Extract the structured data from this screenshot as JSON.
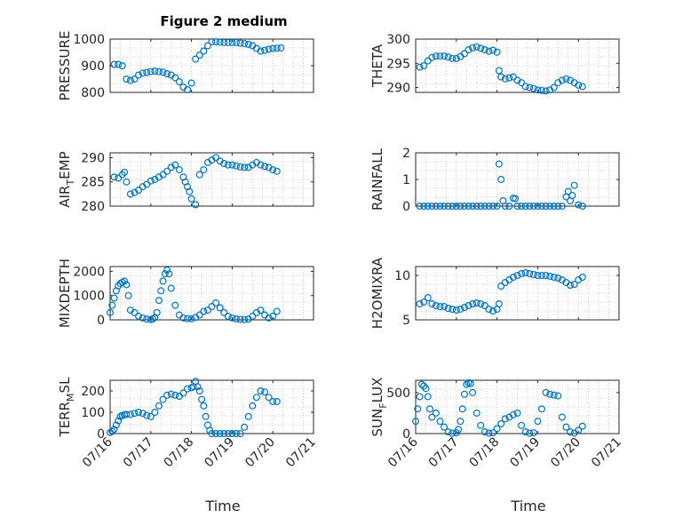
{
  "figure": {
    "title": "Figure 2 medium",
    "xlabel": "Time"
  },
  "x_ticks": [
    "07/16",
    "07/17",
    "07/18",
    "07/19",
    "07/20",
    "07/21"
  ],
  "colors": {
    "marker": "#0072BD",
    "axis": "#262626",
    "grid": "#c8c8c8"
  },
  "chart_data": [
    {
      "type": "scatter",
      "ylabel": "PRESSURE",
      "ylim": [
        800,
        1000
      ],
      "yticks": [
        800,
        900,
        1000
      ],
      "grid": true,
      "xlim": [
        "07/16",
        "07/21"
      ],
      "x": [
        16.1,
        16.2,
        16.3,
        16.4,
        16.5,
        16.6,
        16.7,
        16.8,
        16.9,
        17.0,
        17.1,
        17.2,
        17.3,
        17.4,
        17.5,
        17.6,
        17.7,
        17.8,
        17.9,
        18.0,
        18.1,
        18.2,
        18.3,
        18.4,
        18.5,
        18.6,
        18.7,
        18.8,
        18.9,
        19.0,
        19.1,
        19.2,
        19.3,
        19.4,
        19.5,
        19.6,
        19.7,
        19.8,
        19.9,
        20.0,
        20.1,
        20.2
      ],
      "y": [
        905,
        905,
        900,
        850,
        845,
        850,
        865,
        872,
        875,
        878,
        880,
        878,
        876,
        870,
        865,
        855,
        840,
        820,
        810,
        835,
        925,
        940,
        955,
        975,
        990,
        990,
        988,
        987,
        987,
        987,
        987,
        985,
        983,
        980,
        975,
        965,
        955,
        958,
        962,
        965,
        966,
        967
      ]
    },
    {
      "type": "scatter",
      "ylabel": "THETA",
      "ylim": [
        289,
        300
      ],
      "yticks": [
        290,
        295,
        300
      ],
      "grid": true,
      "xlim": [
        "07/16",
        "07/21"
      ],
      "x": [
        16.1,
        16.2,
        16.3,
        16.4,
        16.5,
        16.6,
        16.7,
        16.8,
        16.9,
        17.0,
        17.1,
        17.2,
        17.3,
        17.4,
        17.5,
        17.6,
        17.7,
        17.8,
        17.9,
        18.0,
        18.05,
        18.1,
        18.2,
        18.3,
        18.4,
        18.5,
        18.6,
        18.7,
        18.8,
        18.9,
        19.0,
        19.1,
        19.2,
        19.3,
        19.4,
        19.5,
        19.6,
        19.7,
        19.8,
        19.9,
        20.0,
        20.1
      ],
      "y": [
        294.2,
        294.5,
        295.5,
        296.2,
        296.5,
        296.5,
        296.5,
        296.3,
        296.0,
        296.0,
        296.4,
        297.0,
        297.8,
        298.2,
        298.4,
        298.1,
        297.8,
        297.5,
        297.7,
        297.3,
        293.5,
        292.2,
        291.8,
        292.0,
        292.2,
        291.5,
        291.0,
        290.2,
        290.0,
        289.8,
        289.5,
        289.4,
        289.3,
        289.5,
        290.0,
        291.0,
        291.5,
        291.8,
        291.5,
        291.0,
        290.5,
        290.2
      ]
    },
    {
      "type": "scatter",
      "ylabel": "AIR_TEMP",
      "ylim": [
        280,
        291
      ],
      "yticks": [
        280,
        285,
        290
      ],
      "grid": true,
      "xlim": [
        "07/16",
        "07/21"
      ],
      "x": [
        16.1,
        16.2,
        16.3,
        16.35,
        16.4,
        16.5,
        16.6,
        16.7,
        16.8,
        16.9,
        17.0,
        17.1,
        17.2,
        17.3,
        17.4,
        17.5,
        17.6,
        17.7,
        17.8,
        17.85,
        17.9,
        17.95,
        18.0,
        18.1,
        18.2,
        18.3,
        18.4,
        18.5,
        18.6,
        18.7,
        18.8,
        18.9,
        19.0,
        19.1,
        19.2,
        19.3,
        19.4,
        19.5,
        19.6,
        19.7,
        19.8,
        19.9,
        20.0,
        20.1
      ],
      "y": [
        286.0,
        285.8,
        286.5,
        287.0,
        285.0,
        282.5,
        282.8,
        283.3,
        284.0,
        284.5,
        285.2,
        285.5,
        286.0,
        286.5,
        287.2,
        288.0,
        288.5,
        287.5,
        286.0,
        285.0,
        284.0,
        283.0,
        281.5,
        280.3,
        286.5,
        287.5,
        289.0,
        289.5,
        290.0,
        289.3,
        288.8,
        288.5,
        288.5,
        288.3,
        288.1,
        288.0,
        288.0,
        288.5,
        289.0,
        288.5,
        288.2,
        288.0,
        287.5,
        287.2
      ]
    },
    {
      "type": "scatter",
      "ylabel": "RAINFALL",
      "ylim": [
        0,
        2
      ],
      "yticks": [
        0,
        1,
        2
      ],
      "grid": true,
      "xlim": [
        "07/16",
        "07/21"
      ],
      "x": [
        16.1,
        16.2,
        16.3,
        16.4,
        16.5,
        16.6,
        16.7,
        16.8,
        16.9,
        17.0,
        17.1,
        17.2,
        17.3,
        17.4,
        17.5,
        17.6,
        17.7,
        17.8,
        17.9,
        18.0,
        18.05,
        18.1,
        18.15,
        18.2,
        18.3,
        18.4,
        18.45,
        18.5,
        18.6,
        18.7,
        18.8,
        18.9,
        19.0,
        19.1,
        19.2,
        19.3,
        19.4,
        19.5,
        19.6,
        19.7,
        19.75,
        19.8,
        19.85,
        19.9,
        20.0,
        20.1
      ],
      "y": [
        0,
        0,
        0,
        0,
        0,
        0,
        0,
        0,
        0,
        0,
        0,
        0,
        0,
        0,
        0,
        0,
        0,
        0,
        0,
        0,
        1.58,
        1.0,
        0.2,
        0,
        0,
        0.3,
        0.28,
        0,
        0,
        0,
        0,
        0,
        0,
        0,
        0,
        0,
        0,
        0,
        0,
        0.35,
        0.55,
        0.2,
        0.4,
        0.78,
        0.05,
        0
      ]
    },
    {
      "type": "scatter",
      "ylabel": "MIXDEPTH",
      "ylim": [
        0,
        2200
      ],
      "yticks": [
        0,
        1000,
        2000
      ],
      "grid": true,
      "xlim": [
        "07/16",
        "07/21"
      ],
      "x": [
        16.0,
        16.05,
        16.1,
        16.15,
        16.2,
        16.25,
        16.3,
        16.35,
        16.4,
        16.45,
        16.5,
        16.6,
        16.7,
        16.8,
        16.9,
        17.0,
        17.05,
        17.1,
        17.15,
        17.2,
        17.25,
        17.3,
        17.35,
        17.4,
        17.45,
        17.5,
        17.6,
        17.7,
        17.8,
        17.9,
        18.0,
        18.1,
        18.2,
        18.3,
        18.4,
        18.5,
        18.6,
        18.7,
        18.8,
        18.9,
        19.0,
        19.1,
        19.2,
        19.3,
        19.4,
        19.5,
        19.6,
        19.7,
        19.8,
        19.9,
        20.0,
        20.1
      ],
      "y": [
        300,
        600,
        900,
        1200,
        1400,
        1500,
        1550,
        1600,
        1450,
        1000,
        400,
        300,
        150,
        80,
        30,
        10,
        40,
        100,
        300,
        800,
        1200,
        1600,
        1900,
        2050,
        1900,
        1300,
        600,
        200,
        80,
        50,
        40,
        100,
        200,
        350,
        400,
        550,
        700,
        500,
        300,
        150,
        80,
        40,
        20,
        10,
        30,
        150,
        300,
        400,
        200,
        80,
        150,
        350
      ]
    },
    {
      "type": "scatter",
      "ylabel": "H2OMIXRA",
      "ylim": [
        5,
        11
      ],
      "yticks": [
        5,
        10
      ],
      "grid": true,
      "xlim": [
        "07/16",
        "07/21"
      ],
      "x": [
        16.1,
        16.2,
        16.3,
        16.4,
        16.5,
        16.6,
        16.7,
        16.8,
        16.9,
        17.0,
        17.1,
        17.2,
        17.3,
        17.4,
        17.5,
        17.6,
        17.7,
        17.8,
        17.9,
        18.0,
        18.05,
        18.1,
        18.2,
        18.3,
        18.4,
        18.5,
        18.6,
        18.7,
        18.8,
        18.9,
        19.0,
        19.1,
        19.2,
        19.3,
        19.4,
        19.5,
        19.6,
        19.7,
        19.8,
        19.9,
        20.0,
        20.1
      ],
      "y": [
        6.8,
        7.0,
        7.5,
        6.8,
        6.6,
        6.5,
        6.5,
        6.3,
        6.2,
        6.1,
        6.2,
        6.4,
        6.6,
        6.8,
        6.9,
        6.8,
        6.6,
        6.2,
        6.0,
        6.2,
        6.8,
        8.8,
        9.2,
        9.5,
        9.8,
        10.0,
        10.2,
        10.3,
        10.2,
        10.1,
        10.0,
        10.0,
        10.0,
        9.9,
        9.8,
        9.7,
        9.5,
        9.2,
        8.9,
        9.0,
        9.5,
        9.8
      ]
    },
    {
      "type": "scatter",
      "ylabel": "TERR_MSL",
      "ylim": [
        0,
        250
      ],
      "yticks": [
        0,
        100,
        200
      ],
      "grid": true,
      "xlim": [
        "07/16",
        "07/21"
      ],
      "x": [
        16.0,
        16.05,
        16.1,
        16.15,
        16.2,
        16.25,
        16.3,
        16.35,
        16.4,
        16.5,
        16.6,
        16.7,
        16.8,
        16.9,
        17.0,
        17.1,
        17.2,
        17.3,
        17.4,
        17.5,
        17.6,
        17.7,
        17.8,
        17.9,
        18.0,
        18.05,
        18.1,
        18.15,
        18.2,
        18.25,
        18.3,
        18.35,
        18.4,
        18.45,
        18.5,
        18.6,
        18.7,
        18.8,
        18.9,
        19.0,
        19.1,
        19.2,
        19.3,
        19.4,
        19.5,
        19.6,
        19.7,
        19.8,
        19.9,
        20.0,
        20.1
      ],
      "y": [
        5,
        10,
        20,
        40,
        60,
        80,
        85,
        88,
        90,
        90,
        95,
        100,
        95,
        85,
        80,
        100,
        130,
        160,
        180,
        185,
        180,
        175,
        190,
        210,
        215,
        220,
        245,
        220,
        200,
        160,
        130,
        80,
        40,
        15,
        0,
        0,
        0,
        0,
        0,
        0,
        0,
        0,
        30,
        80,
        130,
        170,
        200,
        195,
        170,
        150,
        150
      ]
    },
    {
      "type": "scatter",
      "ylabel": "SUN_FLUX",
      "ylim": [
        0,
        650
      ],
      "yticks": [
        0,
        500
      ],
      "grid": true,
      "xlim": [
        "07/16",
        "07/21"
      ],
      "x": [
        16.0,
        16.05,
        16.1,
        16.15,
        16.2,
        16.25,
        16.3,
        16.35,
        16.4,
        16.5,
        16.6,
        16.7,
        16.8,
        16.9,
        17.0,
        17.05,
        17.1,
        17.15,
        17.2,
        17.25,
        17.3,
        17.35,
        17.4,
        17.5,
        17.6,
        17.7,
        17.8,
        17.9,
        18.0,
        18.1,
        18.2,
        18.3,
        18.4,
        18.5,
        18.6,
        18.7,
        18.8,
        18.9,
        19.0,
        19.1,
        19.2,
        19.3,
        19.4,
        19.5,
        19.6,
        19.7,
        19.8,
        19.9,
        20.0,
        20.1
      ],
      "y": [
        150,
        300,
        450,
        600,
        580,
        550,
        450,
        300,
        200,
        250,
        150,
        80,
        20,
        5,
        10,
        50,
        150,
        300,
        480,
        600,
        620,
        610,
        500,
        250,
        100,
        20,
        5,
        10,
        60,
        120,
        180,
        200,
        230,
        250,
        100,
        20,
        5,
        10,
        150,
        300,
        500,
        480,
        470,
        460,
        200,
        80,
        20,
        5,
        40,
        90
      ]
    }
  ]
}
